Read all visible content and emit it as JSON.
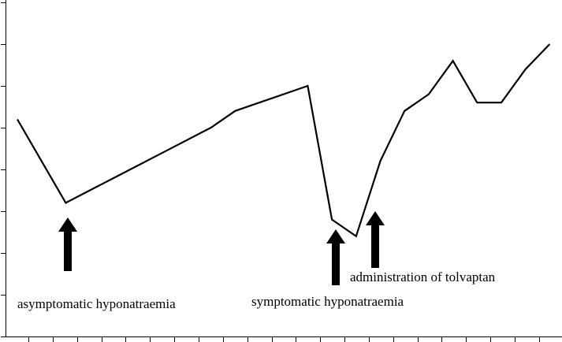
{
  "chart_data": {
    "type": "line",
    "title": "",
    "xlabel": "",
    "ylabel": "",
    "grid": false,
    "legend": "none",
    "x_tick_count": 22,
    "y_tick_count": 8,
    "ylim": [
      0,
      8
    ],
    "series": [
      {
        "values": [
          5.2,
          3.2,
          3.8,
          4.4,
          5.0,
          5.4,
          5.7,
          6.0,
          2.8,
          2.4,
          4.2,
          5.4,
          5.8,
          6.6,
          5.6,
          5.6,
          6.4,
          7.0
        ],
        "x": [
          0,
          2,
          4,
          6,
          8,
          9,
          10.5,
          12,
          13,
          14,
          15,
          16,
          17,
          18,
          19,
          20,
          21,
          22
        ]
      }
    ],
    "annotations": [
      {
        "text": "asymptomatic hyponatraemia",
        "x": 2
      },
      {
        "text": "symptomatic hyponatraemia",
        "x": 13
      },
      {
        "text": "administration of tolvaptan",
        "x": 14.7
      }
    ],
    "colors": {
      "line": "#000000",
      "axis": "#000000"
    }
  }
}
